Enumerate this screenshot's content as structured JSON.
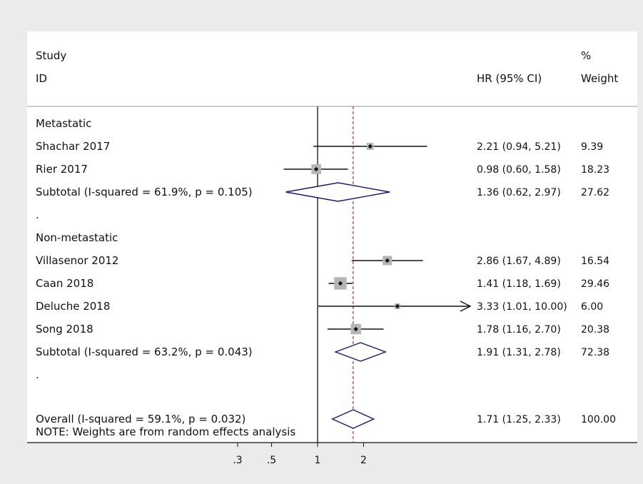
{
  "chart_data": {
    "type": "forest",
    "x_scale": "log",
    "x_ticks": [
      ".3",
      ".5",
      "1",
      "2"
    ],
    "x_tick_values": [
      0.3,
      0.5,
      1,
      2
    ],
    "reference_line": 1,
    "overall_line": 1.71,
    "header": {
      "study": "Study",
      "id": "ID",
      "effect": "HR (95% CI)",
      "pct": "%",
      "weight": "Weight"
    },
    "rows": [
      {
        "label": "Metastatic",
        "kind": "group"
      },
      {
        "label": "Shachar 2017",
        "kind": "study",
        "hr": 2.21,
        "lo": 0.94,
        "hi": 5.21,
        "ci_text": "2.21 (0.94, 5.21)",
        "weight_text": "9.39",
        "weight": 9.39
      },
      {
        "label": "Rier 2017",
        "kind": "study",
        "hr": 0.98,
        "lo": 0.6,
        "hi": 1.58,
        "ci_text": "0.98 (0.60, 1.58)",
        "weight_text": "18.23",
        "weight": 18.23
      },
      {
        "label": "Subtotal  (I-squared = 61.9%, p = 0.105)",
        "kind": "subtotal",
        "hr": 1.36,
        "lo": 0.62,
        "hi": 2.97,
        "ci_text": "1.36 (0.62, 2.97)",
        "weight_text": "27.62"
      },
      {
        "label": ".",
        "kind": "spacer"
      },
      {
        "label": "Non-metastatic",
        "kind": "group"
      },
      {
        "label": "Villasenor 2012",
        "kind": "study",
        "hr": 2.86,
        "lo": 1.67,
        "hi": 4.89,
        "ci_text": "2.86 (1.67, 4.89)",
        "weight_text": "16.54",
        "weight": 16.54
      },
      {
        "label": "Caan  2018",
        "kind": "study",
        "hr": 1.41,
        "lo": 1.18,
        "hi": 1.69,
        "ci_text": "1.41 (1.18, 1.69)",
        "weight_text": "29.46",
        "weight": 29.46
      },
      {
        "label": "Deluche 2018",
        "kind": "study",
        "hr": 3.33,
        "lo": 1.01,
        "hi": 10.0,
        "ci_text": "3.33 (1.01, 10.00)",
        "weight_text": "6.00",
        "weight": 6.0,
        "arrow": true
      },
      {
        "label": "Song  2018",
        "kind": "study",
        "hr": 1.78,
        "lo": 1.16,
        "hi": 2.7,
        "ci_text": "1.78 (1.16, 2.70)",
        "weight_text": "20.38",
        "weight": 20.38
      },
      {
        "label": "Subtotal  (I-squared = 63.2%, p = 0.043)",
        "kind": "subtotal",
        "hr": 1.91,
        "lo": 1.31,
        "hi": 2.78,
        "ci_text": "1.91 (1.31, 2.78)",
        "weight_text": "72.38"
      },
      {
        "label": ".",
        "kind": "spacer"
      },
      {
        "label": "Overall  (I-squared = 59.1%, p = 0.032)",
        "kind": "overall",
        "hr": 1.71,
        "lo": 1.25,
        "hi": 2.33,
        "ci_text": "1.71 (1.25, 2.33)",
        "weight_text": "100.00"
      }
    ],
    "note": "NOTE: Weights are from random effects analysis",
    "colors": {
      "background": "#ebebeb",
      "panel": "#ffffff",
      "diamond": "#1a1a6e",
      "overall_line": "#b03030",
      "box": "#b5b5b5"
    }
  }
}
